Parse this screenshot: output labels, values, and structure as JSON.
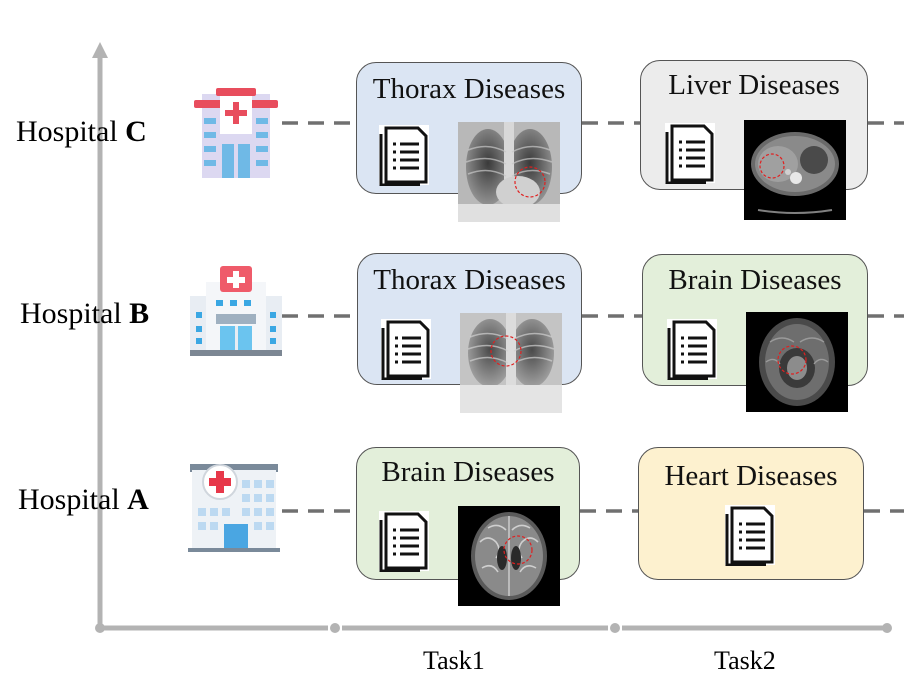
{
  "hospitals": [
    {
      "label": "Hospital",
      "letter": "C"
    },
    {
      "label": "Hospital",
      "letter": "B"
    },
    {
      "label": "Hospital",
      "letter": "A"
    }
  ],
  "tasks": [
    "Task1",
    "Task2"
  ],
  "cards": {
    "c_task1": "Thorax Diseases",
    "c_task2": "Liver Diseases",
    "b_task1": "Thorax Diseases",
    "b_task2": "Brain Diseases",
    "a_task1": "Brain Diseases",
    "a_task2": "Heart Diseases"
  },
  "colors": {
    "thorax": "#dbe5f3",
    "liver": "#ececec",
    "brain": "#e3efda",
    "heart": "#fdf1cf",
    "axis": "#b3b3b3",
    "dash": "#707070"
  }
}
